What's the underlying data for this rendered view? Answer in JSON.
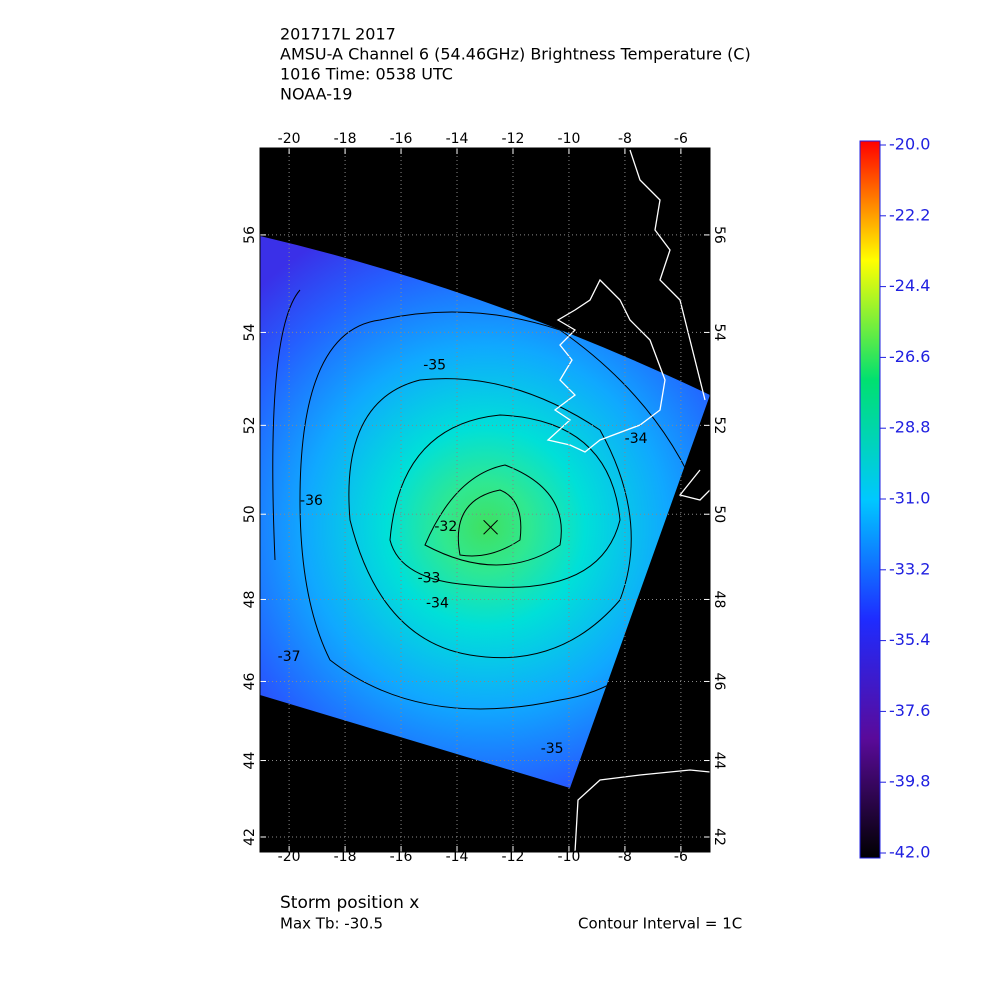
{
  "chart_data": {
    "type": "map",
    "title_lines": [
      "201717L 2017",
      "AMSU-A Channel 6 (54.46GHz) Brightness Temperature (C)",
      "1016 Time: 0538 UTC",
      "NOAA-19"
    ],
    "projection": "mercator",
    "xlim": [
      -21.04,
      -4.96
    ],
    "ylim": [
      41.6,
      57.7
    ],
    "xticks": [
      -20,
      -18,
      -16,
      -14,
      -12,
      -10,
      -8,
      -6
    ],
    "yticks": [
      42,
      44,
      46,
      48,
      50,
      52,
      54,
      56
    ],
    "grid": true,
    "storm": {
      "lon": -12.8,
      "lat": 49.7
    },
    "contour_labels": [
      {
        "value": -35,
        "lon": -14.8,
        "lat": 53.3
      },
      {
        "value": -34,
        "lon": -7.6,
        "lat": 51.7
      },
      {
        "value": -32,
        "lon": -14.4,
        "lat": 49.7
      },
      {
        "value": -33,
        "lon": -15.0,
        "lat": 48.5
      },
      {
        "value": -34,
        "lon": -14.7,
        "lat": 47.9
      },
      {
        "value": -36,
        "lon": -19.2,
        "lat": 50.3
      },
      {
        "value": -37,
        "lon": -20.0,
        "lat": 46.6
      },
      {
        "value": -35,
        "lon": -10.6,
        "lat": 44.3
      }
    ],
    "colorbar": {
      "clim": [
        -42,
        -20
      ],
      "colors": [
        "#000000",
        "#5a0a9a",
        "#1e2cff",
        "#00c8ff",
        "#00e070",
        "#ffff00",
        "#ff0000"
      ],
      "tick_color": "#2020e0",
      "ticks": [
        {
          "value": -20,
          "label": "-20.0"
        },
        {
          "value": -22.2,
          "label": "-22.2"
        },
        {
          "value": -24.4,
          "label": "-24.4"
        },
        {
          "value": -26.6,
          "label": "-26.6"
        },
        {
          "value": -28.8,
          "label": "-28.8"
        },
        {
          "value": -31,
          "label": "-31.0"
        },
        {
          "value": -33.2,
          "label": "-33.2"
        },
        {
          "value": -35.4,
          "label": "-35.4"
        },
        {
          "value": -37.6,
          "label": "-37.6"
        },
        {
          "value": -39.8,
          "label": "-39.8"
        },
        {
          "value": -42,
          "label": "-42.0"
        }
      ]
    },
    "footer": {
      "storm_label": "Storm position x",
      "max_tb": "Max Tb: -30.5",
      "contour_interval": "Contour Interval = 1C"
    }
  }
}
